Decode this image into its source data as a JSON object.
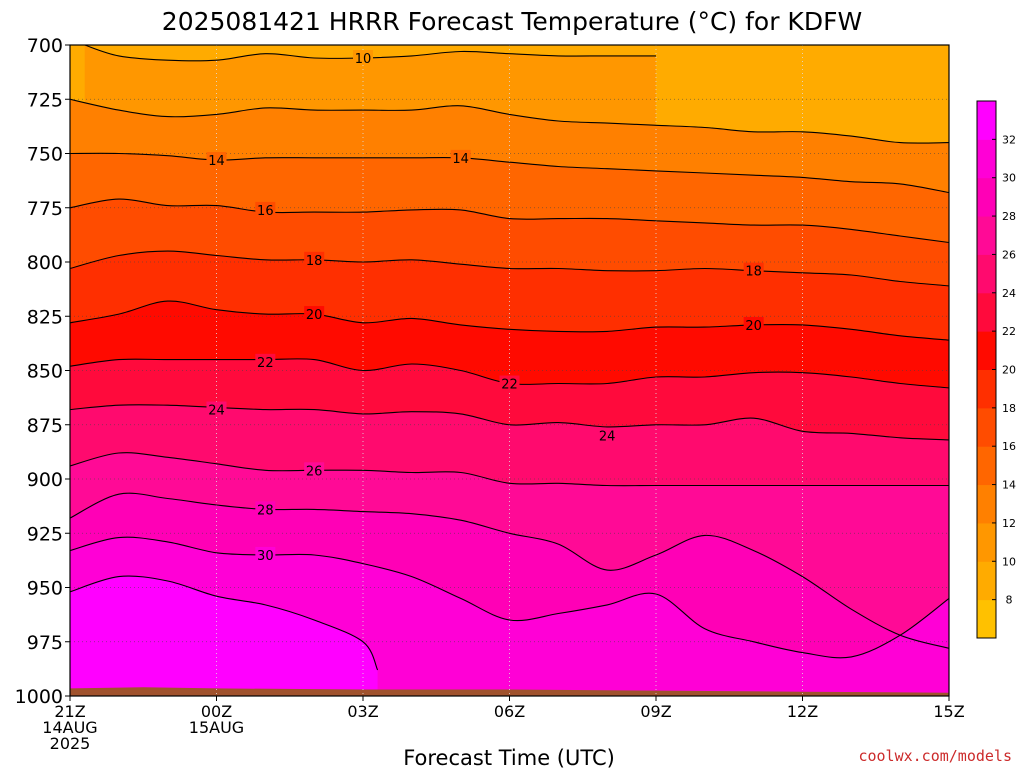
{
  "chart_data": {
    "type": "heatmap",
    "title": "2025081421 HRRR Forecast Temperature (°C) for KDFW",
    "xlabel": "Forecast Time (UTC)",
    "ylabel": "",
    "credit": "coolwx.com/models",
    "y_axis": {
      "scale": "pressure (hPa), inverted",
      "range": [
        1000,
        700
      ],
      "ticks": [
        "700",
        "725",
        "750",
        "775",
        "800",
        "825",
        "850",
        "875",
        "900",
        "925",
        "950",
        "975",
        "1000"
      ]
    },
    "x_axis": {
      "range_hours": [
        0,
        18
      ],
      "ticks": [
        {
          "hour": 0,
          "lines": [
            "21Z",
            "14AUG",
            "2025"
          ]
        },
        {
          "hour": 3,
          "lines": [
            "00Z",
            "15AUG"
          ]
        },
        {
          "hour": 6,
          "lines": [
            "03Z"
          ]
        },
        {
          "hour": 9,
          "lines": [
            "06Z"
          ]
        },
        {
          "hour": 12,
          "lines": [
            "09Z"
          ]
        },
        {
          "hour": 15,
          "lines": [
            "12Z"
          ]
        },
        {
          "hour": 18,
          "lines": [
            "15Z"
          ]
        }
      ]
    },
    "grid": true,
    "colorbar": {
      "placement": "right",
      "levels": [
        6,
        8,
        10,
        12,
        14,
        16,
        18,
        20,
        22,
        24,
        26,
        28,
        30,
        32,
        34
      ],
      "labels": [
        "8",
        "10",
        "12",
        "14",
        "16",
        "18",
        "20",
        "22",
        "24",
        "26",
        "28",
        "30",
        "32"
      ],
      "colors": [
        "#ffc100",
        "#ffab00",
        "#ff9700",
        "#ff8000",
        "#ff6600",
        "#ff4c00",
        "#ff2f00",
        "#ff0a00",
        "#ff0a3c",
        "#ff0a6e",
        "#ff0a96",
        "#ff00b6",
        "#ff00d6",
        "#ff00ff"
      ]
    },
    "contour_levels": [
      10,
      12,
      14,
      16,
      18,
      20,
      22,
      24,
      26,
      28,
      30,
      32
    ],
    "contour_labels": [
      {
        "value": "10",
        "hour": 6.0,
        "p": 706
      },
      {
        "value": "14",
        "hour": 3.0,
        "p": 753
      },
      {
        "value": "14",
        "hour": 8.0,
        "p": 752
      },
      {
        "value": "16",
        "hour": 4.0,
        "p": 776
      },
      {
        "value": "18",
        "hour": 5.0,
        "p": 799
      },
      {
        "value": "18",
        "hour": 14.0,
        "p": 804
      },
      {
        "value": "20",
        "hour": 5.0,
        "p": 824
      },
      {
        "value": "20",
        "hour": 14.0,
        "p": 829
      },
      {
        "value": "22",
        "hour": 4.0,
        "p": 846
      },
      {
        "value": "22",
        "hour": 9.0,
        "p": 856
      },
      {
        "value": "24",
        "hour": 3.0,
        "p": 868
      },
      {
        "value": "24",
        "hour": 11.0,
        "p": 880
      },
      {
        "value": "26",
        "hour": 5.0,
        "p": 896
      },
      {
        "value": "28",
        "hour": 4.0,
        "p": 914
      },
      {
        "value": "30",
        "hour": 4.0,
        "p": 935
      }
    ],
    "isotherms": [
      {
        "value": 10,
        "points": [
          [
            0.3,
            700
          ],
          [
            1.0,
            705
          ],
          [
            2.0,
            707
          ],
          [
            3.0,
            707
          ],
          [
            4.0,
            704
          ],
          [
            5.0,
            706
          ],
          [
            6.0,
            706
          ],
          [
            7.0,
            705
          ],
          [
            8.0,
            703
          ],
          [
            9.0,
            704
          ],
          [
            10.0,
            705
          ],
          [
            11.0,
            705
          ],
          [
            12.0,
            705
          ]
        ]
      },
      {
        "value": 12,
        "points": [
          [
            0,
            725
          ],
          [
            1.0,
            730
          ],
          [
            2.0,
            733
          ],
          [
            3.0,
            732
          ],
          [
            4.0,
            729
          ],
          [
            5.0,
            730
          ],
          [
            6.0,
            730
          ],
          [
            7.0,
            730
          ],
          [
            8.0,
            728
          ],
          [
            9.0,
            732
          ],
          [
            10.0,
            735
          ],
          [
            11.0,
            736
          ],
          [
            12.0,
            737
          ],
          [
            13.0,
            738
          ],
          [
            14.0,
            740
          ],
          [
            15.0,
            740
          ],
          [
            16.0,
            742
          ],
          [
            17.0,
            745
          ],
          [
            18.0,
            745
          ]
        ]
      },
      {
        "value": 14,
        "points": [
          [
            0,
            750
          ],
          [
            1.0,
            750
          ],
          [
            2.0,
            751
          ],
          [
            3.0,
            753
          ],
          [
            4.0,
            752
          ],
          [
            5.0,
            752
          ],
          [
            6.0,
            752
          ],
          [
            7.0,
            752
          ],
          [
            8.0,
            752
          ],
          [
            9.0,
            754
          ],
          [
            10.0,
            756
          ],
          [
            11.0,
            757
          ],
          [
            12.0,
            758
          ],
          [
            13.0,
            759
          ],
          [
            14.0,
            760
          ],
          [
            15.0,
            761
          ],
          [
            16.0,
            763
          ],
          [
            17.0,
            764
          ],
          [
            18.0,
            768
          ]
        ]
      },
      {
        "value": 16,
        "points": [
          [
            0,
            775
          ],
          [
            1.0,
            771
          ],
          [
            2.0,
            774
          ],
          [
            3.0,
            774
          ],
          [
            4.0,
            777
          ],
          [
            5.0,
            777
          ],
          [
            6.0,
            777
          ],
          [
            7.0,
            776
          ],
          [
            8.0,
            776
          ],
          [
            9.0,
            780
          ],
          [
            10.0,
            780
          ],
          [
            11.0,
            780
          ],
          [
            12.0,
            781
          ],
          [
            13.0,
            782
          ],
          [
            14.0,
            783
          ],
          [
            15.0,
            783
          ],
          [
            16.0,
            785
          ],
          [
            17.0,
            788
          ],
          [
            18.0,
            791
          ]
        ]
      },
      {
        "value": 18,
        "points": [
          [
            0,
            803
          ],
          [
            1.0,
            797
          ],
          [
            2.0,
            795
          ],
          [
            3.0,
            797
          ],
          [
            4.0,
            799
          ],
          [
            5.0,
            799
          ],
          [
            6.0,
            800
          ],
          [
            7.0,
            799
          ],
          [
            8.0,
            801
          ],
          [
            9.0,
            803
          ],
          [
            10.0,
            803
          ],
          [
            11.0,
            804
          ],
          [
            12.0,
            804
          ],
          [
            13.0,
            803
          ],
          [
            14.0,
            804
          ],
          [
            15.0,
            805
          ],
          [
            16.0,
            806
          ],
          [
            17.0,
            809
          ],
          [
            18.0,
            811
          ]
        ]
      },
      {
        "value": 20,
        "points": [
          [
            0,
            828
          ],
          [
            1.0,
            824
          ],
          [
            2.0,
            818
          ],
          [
            3.0,
            822
          ],
          [
            4.0,
            824
          ],
          [
            5.0,
            824
          ],
          [
            6.0,
            828
          ],
          [
            7.0,
            826
          ],
          [
            8.0,
            829
          ],
          [
            9.0,
            831
          ],
          [
            10.0,
            832
          ],
          [
            11.0,
            832
          ],
          [
            12.0,
            830
          ],
          [
            13.0,
            830
          ],
          [
            14.0,
            829
          ],
          [
            15.0,
            829
          ],
          [
            16.0,
            831
          ],
          [
            17.0,
            834
          ],
          [
            18.0,
            836
          ]
        ]
      },
      {
        "value": 22,
        "points": [
          [
            0,
            848
          ],
          [
            1.0,
            845
          ],
          [
            2.0,
            845
          ],
          [
            3.0,
            845
          ],
          [
            4.0,
            845
          ],
          [
            5.0,
            845
          ],
          [
            6.0,
            850
          ],
          [
            7.0,
            847
          ],
          [
            8.0,
            850
          ],
          [
            9.0,
            856
          ],
          [
            10.0,
            856
          ],
          [
            11.0,
            856
          ],
          [
            12.0,
            853
          ],
          [
            13.0,
            853
          ],
          [
            14.0,
            851
          ],
          [
            15.0,
            851
          ],
          [
            16.0,
            853
          ],
          [
            17.0,
            856
          ],
          [
            18.0,
            858
          ]
        ]
      },
      {
        "value": 24,
        "points": [
          [
            0,
            868
          ],
          [
            1.0,
            866
          ],
          [
            2.0,
            866
          ],
          [
            3.0,
            867
          ],
          [
            4.0,
            868
          ],
          [
            5.0,
            868
          ],
          [
            6.0,
            870
          ],
          [
            7.0,
            869
          ],
          [
            8.0,
            870
          ],
          [
            9.0,
            875
          ],
          [
            10.0,
            874
          ],
          [
            11.0,
            876
          ],
          [
            12.0,
            875
          ],
          [
            13.0,
            875
          ],
          [
            14.0,
            872
          ],
          [
            15.0,
            878
          ],
          [
            16.0,
            879
          ],
          [
            17.0,
            881
          ],
          [
            18.0,
            882
          ]
        ]
      },
      {
        "value": 26,
        "points": [
          [
            0,
            894
          ],
          [
            1.0,
            888
          ],
          [
            2.0,
            890
          ],
          [
            3.0,
            893
          ],
          [
            4.0,
            896
          ],
          [
            5.0,
            896
          ],
          [
            6.0,
            896
          ],
          [
            7.0,
            897
          ],
          [
            8.0,
            897
          ],
          [
            9.0,
            902
          ],
          [
            10.0,
            902
          ],
          [
            11.0,
            903
          ],
          [
            12.0,
            903
          ],
          [
            13.0,
            903
          ],
          [
            14.0,
            903
          ],
          [
            15.0,
            903
          ],
          [
            16.0,
            903
          ],
          [
            17.0,
            903
          ],
          [
            18.0,
            903
          ]
        ]
      },
      {
        "value": 28,
        "points": [
          [
            0,
            918
          ],
          [
            1.0,
            907
          ],
          [
            2.0,
            909
          ],
          [
            3.0,
            912
          ],
          [
            4.0,
            914
          ],
          [
            5.0,
            914
          ],
          [
            6.0,
            915
          ],
          [
            7.0,
            916
          ],
          [
            8.0,
            919
          ],
          [
            9.0,
            925
          ],
          [
            10.0,
            930
          ],
          [
            11.0,
            942
          ],
          [
            12.0,
            935
          ],
          [
            13.0,
            926
          ],
          [
            14.0,
            933
          ],
          [
            15.0,
            945
          ],
          [
            16.0,
            960
          ],
          [
            17.0,
            972
          ],
          [
            18.0,
            978
          ]
        ]
      },
      {
        "value": 30,
        "points": [
          [
            0,
            933
          ],
          [
            1.0,
            927
          ],
          [
            2.0,
            929
          ],
          [
            3.0,
            934
          ],
          [
            4.0,
            935
          ],
          [
            5.0,
            935
          ],
          [
            6.0,
            939
          ],
          [
            7.0,
            945
          ],
          [
            8.0,
            955
          ],
          [
            9.0,
            965
          ],
          [
            10.0,
            962
          ],
          [
            11.0,
            958
          ],
          [
            12.0,
            953
          ],
          [
            13.0,
            969
          ],
          [
            14.0,
            975
          ],
          [
            15.0,
            980
          ],
          [
            16.0,
            982
          ],
          [
            17.0,
            972
          ],
          [
            18.0,
            955
          ]
        ]
      },
      {
        "value": 32,
        "points": [
          [
            0,
            952
          ],
          [
            1.0,
            945
          ],
          [
            2.0,
            947
          ],
          [
            3.0,
            954
          ],
          [
            4.0,
            958
          ],
          [
            5.0,
            965
          ],
          [
            6.0,
            975
          ],
          [
            6.3,
            988
          ]
        ]
      }
    ]
  }
}
